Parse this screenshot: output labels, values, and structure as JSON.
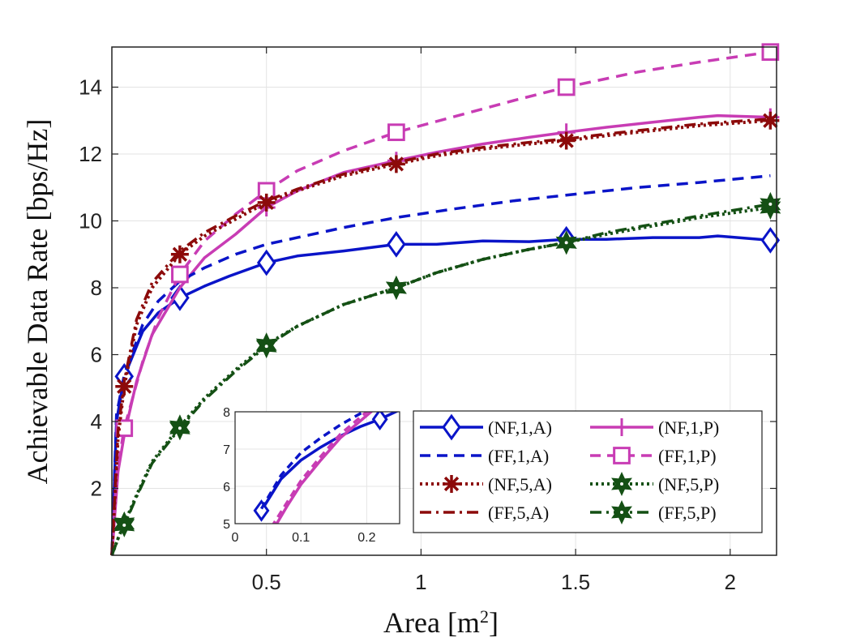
{
  "chart_data": {
    "type": "line",
    "xlabel": "Area [m",
    "xlabel_sup": "2",
    "xlabel_close": "]",
    "ylabel": "Achievable Data Rate [bps/Hz]",
    "xlim": [
      0,
      2.15
    ],
    "ylim": [
      0,
      15.2
    ],
    "xticks": [
      0.5,
      1,
      1.5,
      2
    ],
    "xtick_labels": [
      "0.5",
      "1",
      "1.5",
      "2"
    ],
    "yticks": [
      2,
      4,
      6,
      8,
      10,
      12,
      14
    ],
    "ytick_labels": [
      "2",
      "4",
      "6",
      "8",
      "10",
      "12",
      "14"
    ],
    "grid": true,
    "legend_position": "bottom-right",
    "series": [
      {
        "name": "(NF,1,A)",
        "color": "#0a14c8",
        "dash": "solid",
        "marker": "diamond",
        "x": [
          0,
          0.015,
          0.04,
          0.1,
          0.15,
          0.22,
          0.3,
          0.38,
          0.5,
          0.6,
          0.75,
          0.92,
          1.05,
          1.2,
          1.35,
          1.47,
          1.6,
          1.75,
          1.9,
          1.96,
          2.13
        ],
        "y": [
          0,
          4.0,
          5.35,
          6.7,
          7.25,
          7.7,
          8.05,
          8.35,
          8.75,
          8.95,
          9.1,
          9.3,
          9.3,
          9.4,
          9.38,
          9.45,
          9.45,
          9.5,
          9.5,
          9.55,
          9.42
        ],
        "marker_indices": [
          2,
          5,
          8,
          11,
          15,
          20
        ]
      },
      {
        "name": "(NF,1,P)",
        "color": "#c83cb4",
        "dash": "solid",
        "marker": "plus",
        "x": [
          0,
          0.02,
          0.04,
          0.08,
          0.13,
          0.22,
          0.3,
          0.4,
          0.5,
          0.6,
          0.75,
          0.92,
          1.05,
          1.2,
          1.35,
          1.47,
          1.6,
          1.75,
          1.9,
          1.96,
          2.13
        ],
        "y": [
          0,
          2.5,
          3.6,
          5.2,
          6.6,
          8.0,
          8.9,
          9.6,
          10.4,
          10.9,
          11.45,
          11.8,
          12.05,
          12.3,
          12.5,
          12.65,
          12.8,
          12.95,
          13.1,
          13.15,
          13.1
        ],
        "marker_indices": [
          8,
          11,
          15,
          20
        ]
      },
      {
        "name": "(FF,1,A)",
        "color": "#0a14c8",
        "dash": "dashed",
        "marker": "none",
        "x": [
          0,
          0.015,
          0.04,
          0.1,
          0.15,
          0.22,
          0.3,
          0.4,
          0.5,
          0.6,
          0.75,
          0.92,
          1.1,
          1.3,
          1.5,
          1.7,
          1.9,
          2.13
        ],
        "y": [
          0,
          4.2,
          5.4,
          6.9,
          7.6,
          8.2,
          8.6,
          9.0,
          9.3,
          9.5,
          9.8,
          10.1,
          10.35,
          10.6,
          10.8,
          11.0,
          11.15,
          11.35
        ],
        "marker_indices": []
      },
      {
        "name": "(FF,1,P)",
        "color": "#c83cb4",
        "dash": "dashed",
        "marker": "square",
        "x": [
          0,
          0.015,
          0.04,
          0.1,
          0.15,
          0.22,
          0.3,
          0.4,
          0.5,
          0.6,
          0.75,
          0.92,
          1.1,
          1.3,
          1.47,
          1.7,
          1.9,
          2.13
        ],
        "y": [
          0,
          2.4,
          3.8,
          5.8,
          7.1,
          8.4,
          9.4,
          10.2,
          10.9,
          11.5,
          12.1,
          12.65,
          13.1,
          13.6,
          14.0,
          14.45,
          14.75,
          15.05
        ],
        "marker_indices": [
          2,
          5,
          8,
          11,
          14,
          17
        ]
      },
      {
        "name": "(NF,5,A)",
        "color": "#8c0a0a",
        "dash": "dotted",
        "marker": "asterisk",
        "x": [
          0,
          0.02,
          0.04,
          0.08,
          0.13,
          0.22,
          0.3,
          0.4,
          0.5,
          0.6,
          0.75,
          0.92,
          1.05,
          1.2,
          1.35,
          1.47,
          1.6,
          1.75,
          1.9,
          2.13
        ],
        "y": [
          0,
          3.5,
          5.05,
          6.9,
          8.0,
          9.0,
          9.55,
          10.05,
          10.55,
          10.9,
          11.35,
          11.7,
          11.95,
          12.15,
          12.3,
          12.4,
          12.55,
          12.7,
          12.85,
          13.0
        ],
        "marker_indices": [
          2,
          5,
          8,
          11,
          15,
          19
        ]
      },
      {
        "name": "(NF,5,P)",
        "color": "#145014",
        "dash": "dotted",
        "marker": "hexagram",
        "x": [
          0,
          0.02,
          0.04,
          0.08,
          0.13,
          0.22,
          0.3,
          0.4,
          0.5,
          0.6,
          0.75,
          0.92,
          1.05,
          1.2,
          1.35,
          1.47,
          1.6,
          1.75,
          1.9,
          2.13
        ],
        "y": [
          0,
          0.5,
          0.95,
          1.8,
          2.8,
          3.85,
          4.7,
          5.55,
          6.3,
          6.85,
          7.5,
          8.0,
          8.45,
          8.85,
          9.15,
          9.35,
          9.6,
          9.85,
          10.1,
          10.4
        ],
        "marker_indices": [
          2,
          5,
          8,
          11,
          15,
          19
        ]
      },
      {
        "name": "(FF,5,A)",
        "color": "#8c0a0a",
        "dash": "dashdot",
        "marker": "none",
        "x": [
          0,
          0.02,
          0.04,
          0.08,
          0.13,
          0.22,
          0.3,
          0.4,
          0.5,
          0.6,
          0.75,
          0.92,
          1.05,
          1.2,
          1.35,
          1.47,
          1.6,
          1.75,
          1.9,
          2.13
        ],
        "y": [
          0,
          3.7,
          5.2,
          7.05,
          8.15,
          9.1,
          9.65,
          10.15,
          10.6,
          10.95,
          11.4,
          11.75,
          12.0,
          12.2,
          12.35,
          12.45,
          12.6,
          12.75,
          12.9,
          13.05
        ],
        "marker_indices": []
      },
      {
        "name": "(FF,5,P)",
        "color": "#145014",
        "dash": "dashdot",
        "marker": "hexagram",
        "x": [
          0,
          0.02,
          0.04,
          0.08,
          0.13,
          0.22,
          0.3,
          0.4,
          0.5,
          0.6,
          0.75,
          0.92,
          1.05,
          1.2,
          1.35,
          1.47,
          1.6,
          1.75,
          1.9,
          2.13
        ],
        "y": [
          0,
          0.5,
          0.9,
          1.75,
          2.75,
          3.8,
          4.65,
          5.5,
          6.25,
          6.85,
          7.5,
          8.0,
          8.45,
          8.85,
          9.15,
          9.35,
          9.65,
          9.9,
          10.15,
          10.5
        ],
        "marker_indices": [
          2,
          5,
          8,
          11,
          15,
          19
        ]
      }
    ],
    "legend_order": [
      "(NF,1,A)",
      "(NF,1,P)",
      "(FF,1,A)",
      "(FF,1,P)",
      "(NF,5,A)",
      "(NF,5,P)",
      "(FF,5,A)",
      "(FF,5,P)"
    ],
    "inset": {
      "xlim": [
        0,
        0.25
      ],
      "ylim": [
        5,
        8
      ],
      "xticks": [
        0,
        0.1,
        0.2
      ],
      "xtick_labels": [
        "0",
        "0.1",
        "0.2"
      ],
      "yticks": [
        5,
        6,
        7,
        8
      ],
      "ytick_labels": [
        "5",
        "6",
        "7",
        "8"
      ],
      "series": [
        {
          "name": "(NF,1,A)",
          "color": "#0a14c8",
          "dash": "solid",
          "marker": "diamond",
          "x": [
            0.04,
            0.07,
            0.1,
            0.13,
            0.16,
            0.19,
            0.22,
            0.25
          ],
          "y": [
            5.35,
            6.2,
            6.7,
            7.05,
            7.35,
            7.6,
            7.8,
            8.05
          ],
          "marker_indices": [
            0,
            6
          ]
        },
        {
          "name": "(FF,1,A)",
          "color": "#0a14c8",
          "dash": "dashed",
          "marker": "none",
          "x": [
            0.04,
            0.07,
            0.1,
            0.13,
            0.16,
            0.19,
            0.22
          ],
          "y": [
            5.4,
            6.3,
            6.9,
            7.3,
            7.65,
            7.95,
            8.2
          ],
          "marker_indices": []
        },
        {
          "name": "(NF,1,P)",
          "color": "#c83cb4",
          "dash": "solid",
          "marker": "none",
          "x": [
            0.06,
            0.08,
            0.1,
            0.13,
            0.16,
            0.19,
            0.21
          ],
          "y": [
            4.9,
            5.5,
            6.05,
            6.7,
            7.3,
            7.75,
            8.05
          ],
          "marker_indices": []
        },
        {
          "name": "(FF,1,P)",
          "color": "#c83cb4",
          "dash": "dashed",
          "marker": "none",
          "x": [
            0.055,
            0.08,
            0.1,
            0.13,
            0.16,
            0.19,
            0.21
          ],
          "y": [
            4.9,
            5.6,
            6.15,
            6.8,
            7.4,
            7.85,
            8.15
          ],
          "marker_indices": []
        }
      ]
    }
  }
}
